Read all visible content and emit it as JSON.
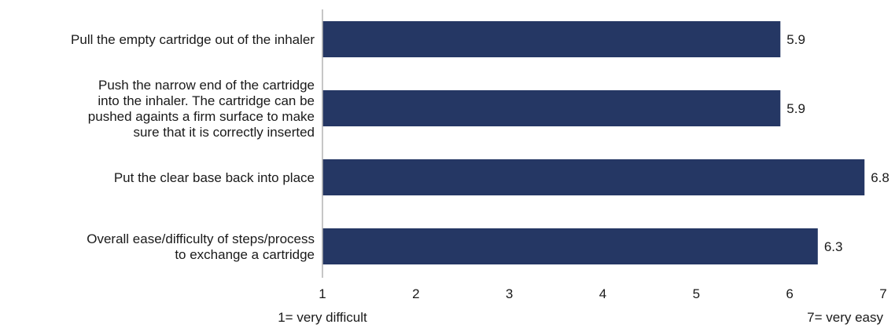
{
  "chart_data": {
    "type": "bar",
    "orientation": "horizontal",
    "categories": [
      "Pull the empty cartridge out of the inhaler",
      "Push the narrow end of the cartridge into the inhaler. The cartridge can be pushed againts a firm surface to make sure that it is correctly inserted",
      "Put the clear base back into place",
      "Overall ease/difficulty of steps/process to exchange a cartridge"
    ],
    "category_lines": [
      [
        "Pull the empty cartridge out of the inhaler"
      ],
      [
        "Push the narrow end of the cartridge",
        "into the inhaler. The cartridge can be",
        "pushed againts a firm surface to make",
        "sure that it is correctly inserted"
      ],
      [
        "Put the clear base back into place"
      ],
      [
        "Overall ease/difficulty of steps/process",
        "to exchange a cartridge"
      ]
    ],
    "values": [
      5.9,
      5.9,
      6.8,
      6.3
    ],
    "value_labels": [
      "5.9",
      "5.9",
      "6.8",
      "6.3"
    ],
    "xlim": [
      1,
      7
    ],
    "xticks": [
      1,
      2,
      3,
      4,
      5,
      6,
      7
    ],
    "xtick_labels": [
      "1",
      "2",
      "3",
      "4",
      "5",
      "6",
      "7"
    ],
    "scale_low_label": "1= very difficult",
    "scale_high_label": "7= very easy",
    "bar_color": "#253764",
    "axis_color": "#b3b3b3",
    "grid": false,
    "legend": "none"
  }
}
